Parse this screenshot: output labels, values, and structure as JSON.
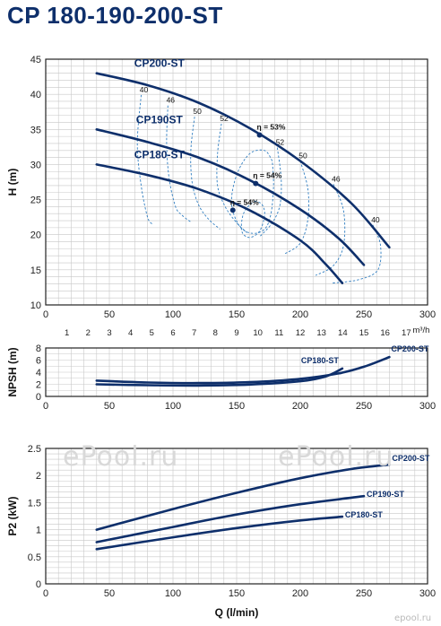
{
  "title": "CP 180-190-200-ST",
  "watermark": {
    "text": "ePool.ru",
    "corner": "epool.ru"
  },
  "colors": {
    "curve": "#0e2f6b",
    "grid": "#c8c8c8",
    "axis": "#222222",
    "iso": "#2e7dc1"
  },
  "chart_data": [
    {
      "id": "head",
      "type": "line",
      "ylabel": "H (m)",
      "xlim": [
        0,
        300
      ],
      "ylim": [
        10,
        45
      ],
      "xticks": [
        0,
        50,
        100,
        150,
        200,
        250,
        300
      ],
      "yticks": [
        10,
        15,
        20,
        25,
        30,
        35,
        40,
        45
      ],
      "x2": {
        "unit": "m³/h",
        "ticks": [
          0,
          1,
          2,
          3,
          4,
          5,
          6,
          7,
          8,
          9,
          10,
          11,
          12,
          13,
          14,
          15,
          16,
          17
        ],
        "lpm_per_unit": 16.6667
      },
      "grid": true,
      "series": [
        {
          "name": "CP200-ST",
          "x": [
            40,
            80,
            120,
            160,
            200,
            240,
            270
          ],
          "y": [
            43,
            41.3,
            38.8,
            35.2,
            30.5,
            24.5,
            18.2
          ]
        },
        {
          "name": "CP190ST",
          "x": [
            40,
            80,
            120,
            160,
            200,
            230,
            250
          ],
          "y": [
            35,
            33.2,
            31,
            27.8,
            23.6,
            19.5,
            15.7
          ]
        },
        {
          "name": "CP180-ST",
          "x": [
            40,
            80,
            120,
            160,
            200,
            220,
            233
          ],
          "y": [
            30,
            28.5,
            26.5,
            23.5,
            19.2,
            15.8,
            13.1
          ]
        }
      ],
      "efficiency_iso": [
        {
          "label": "40",
          "x": [
            75,
            72,
            75,
            80,
            84
          ],
          "y": [
            39.9,
            33,
            27,
            22.5,
            21.5
          ]
        },
        {
          "label": "46",
          "x": [
            96,
            95,
            97,
            102,
            107,
            114
          ],
          "y": [
            38.4,
            33,
            28,
            24,
            22.8,
            21.8
          ]
        },
        {
          "label": "50",
          "x": [
            117,
            114,
            115,
            120,
            128,
            137
          ],
          "y": [
            36.8,
            32,
            27.5,
            24.3,
            22.2,
            20.8
          ]
        },
        {
          "label": "52",
          "x": [
            138,
            135,
            135,
            141,
            150,
            158
          ],
          "y": [
            35.8,
            31.5,
            27,
            24,
            21.7,
            20.3
          ]
        },
        {
          "label": "52",
          "x": [
            182,
            185,
            184,
            178,
            168
          ],
          "y": [
            32.4,
            28,
            24.2,
            21.7,
            19.7
          ]
        },
        {
          "label": "50",
          "x": [
            200,
            206,
            206,
            200,
            188
          ],
          "y": [
            30.5,
            26.5,
            22.2,
            18.8,
            17.3
          ]
        },
        {
          "label": "46",
          "x": [
            226,
            234,
            234,
            226,
            212
          ],
          "y": [
            27.2,
            23.4,
            18.5,
            15.6,
            14.2
          ]
        },
        {
          "label": "40",
          "x": [
            257,
            263,
            261,
            246,
            225
          ],
          "y": [
            21.4,
            18.5,
            15,
            13.6,
            13.1
          ]
        },
        {
          "label": "",
          "x": [
            165,
            160,
            155,
            154,
            160,
            168,
            172,
            170,
            165
          ],
          "y": [
            24.8,
            24.2,
            22.8,
            20.5,
            19.6,
            20.5,
            22.8,
            24.3,
            24.8
          ]
        },
        {
          "label": "",
          "x": [
            178,
            172,
            160,
            150,
            146,
            152,
            162,
            172,
            177,
            179,
            178
          ],
          "y": [
            30.5,
            32,
            31.5,
            28.5,
            24.5,
            21.3,
            20.2,
            20.8,
            23,
            27,
            30.5
          ]
        }
      ],
      "bep": [
        {
          "label": "η = 53%",
          "x": 168,
          "y": 34.2
        },
        {
          "label": "η = 54%",
          "x": 165,
          "y": 27.3
        },
        {
          "label": "η = 54%",
          "x": 147,
          "y": 23.5
        }
      ]
    },
    {
      "id": "npsh",
      "type": "line",
      "ylabel": "NPSH (m)",
      "xlim": [
        0,
        300
      ],
      "ylim": [
        0,
        8
      ],
      "xticks": [
        0,
        50,
        100,
        150,
        200,
        250,
        300
      ],
      "yticks": [
        0,
        2,
        4,
        6,
        8
      ],
      "grid": true,
      "series": [
        {
          "name": "CP200-ST",
          "x": [
            40,
            80,
            120,
            160,
            200,
            230,
            250,
            270
          ],
          "y": [
            2.6,
            2.3,
            2.2,
            2.35,
            2.9,
            3.8,
            4.9,
            6.5
          ]
        },
        {
          "name": "CP180-ST",
          "x": [
            40,
            80,
            120,
            160,
            200,
            220,
            233
          ],
          "y": [
            2.0,
            1.85,
            1.8,
            1.95,
            2.5,
            3.3,
            4.6
          ]
        }
      ]
    },
    {
      "id": "power",
      "type": "line",
      "ylabel": "P2 (kW)",
      "xlabel": "Q (l/min)",
      "xlim": [
        0,
        300
      ],
      "ylim": [
        0,
        2.5
      ],
      "xticks": [
        0,
        50,
        100,
        150,
        200,
        250,
        300
      ],
      "yticks": [
        0,
        0.5,
        1,
        1.5,
        2,
        2.5
      ],
      "grid": true,
      "series": [
        {
          "name": "CP200-ST",
          "x": [
            40,
            100,
            150,
            200,
            240,
            270
          ],
          "y": [
            1.0,
            1.38,
            1.68,
            1.95,
            2.12,
            2.2
          ]
        },
        {
          "name": "CP190-ST",
          "x": [
            40,
            100,
            150,
            200,
            250
          ],
          "y": [
            0.77,
            1.05,
            1.28,
            1.47,
            1.62
          ]
        },
        {
          "name": "CP180-ST",
          "x": [
            40,
            100,
            150,
            200,
            233
          ],
          "y": [
            0.64,
            0.86,
            1.03,
            1.17,
            1.24
          ]
        }
      ]
    }
  ]
}
